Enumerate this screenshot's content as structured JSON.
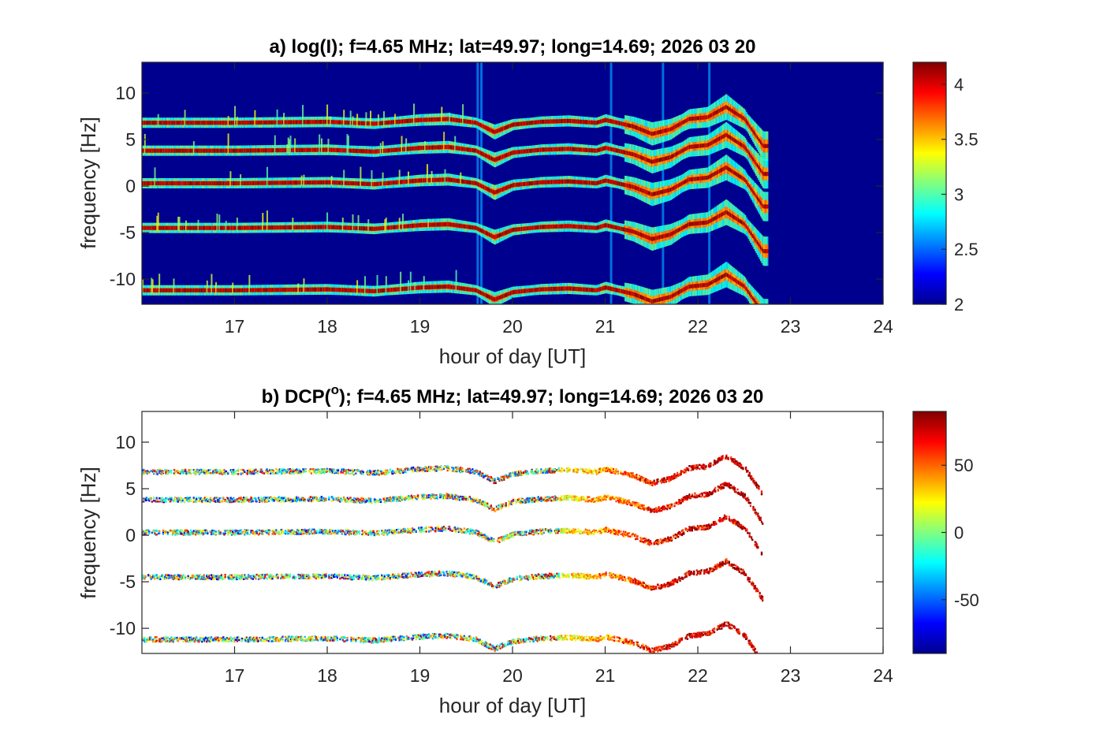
{
  "chart_data": [
    {
      "type": "heatmap",
      "panel": "a",
      "title_prefix": "a) log(I)",
      "title_suffix": "; f=4.65 MHz;  lat=49.97; long=14.69; 2026 03 20",
      "xlabel": "hour of day [UT]",
      "ylabel": "frequency [Hz]",
      "xlim": [
        16,
        24
      ],
      "ylim": [
        -12.7,
        13.3
      ],
      "xticks": [
        17,
        18,
        19,
        20,
        21,
        22,
        23,
        24
      ],
      "yticks": [
        -10,
        -5,
        0,
        5,
        10
      ],
      "colormap": "jet",
      "background_color": "#00008f",
      "colorbar": {
        "range": [
          2,
          4.2
        ],
        "ticks": [
          "2",
          "2.5",
          "3",
          "3.5",
          "4"
        ],
        "tick_values": [
          2,
          2.5,
          3,
          3.5,
          4
        ]
      },
      "signal_end_hour": 22.75,
      "line_base_frequencies_hz": [
        6.8,
        3.8,
        0.3,
        -4.5,
        -11.2
      ],
      "line_offset_profile": {
        "x": [
          16.0,
          17.0,
          18.0,
          18.5,
          19.0,
          19.3,
          19.6,
          19.8,
          20.0,
          20.3,
          20.6,
          20.9,
          21.0,
          21.3,
          21.5,
          21.7,
          21.9,
          22.1,
          22.3,
          22.5,
          22.7
        ],
        "y": [
          0.0,
          0.0,
          0.1,
          -0.1,
          0.3,
          0.4,
          0.0,
          -1.0,
          -0.2,
          0.1,
          0.2,
          0.0,
          0.3,
          -0.4,
          -1.2,
          -0.7,
          0.4,
          0.6,
          1.7,
          0.4,
          -2.5
        ]
      },
      "colorbar_values": [
        2,
        4.2
      ]
    },
    {
      "type": "heatmap",
      "panel": "b",
      "title_prefix": "b) DCP(",
      "title_sup": "o",
      "title_suffix": "); f=4.65 MHz;  lat=49.97; long=14.69; 2026 03 20",
      "xlabel": "hour of day [UT]",
      "ylabel": "frequency [Hz]",
      "xlim": [
        16,
        24
      ],
      "ylim": [
        -12.7,
        13.3
      ],
      "xticks": [
        17,
        18,
        19,
        20,
        21,
        22,
        23,
        24
      ],
      "yticks": [
        -10,
        -5,
        0,
        5,
        10
      ],
      "colormap": "jet",
      "background_color": "#ffffff",
      "colorbar": {
        "range": [
          -90,
          90
        ],
        "ticks": [
          "50",
          "0",
          "-50"
        ],
        "tick_values": [
          50,
          0,
          -50
        ]
      },
      "signal_end_hour": 22.7,
      "dcp_trend": {
        "x": [
          16,
          19,
          20.5,
          21.2,
          21.6,
          22.7
        ],
        "y": [
          0,
          0,
          20,
          50,
          70,
          80
        ]
      }
    }
  ],
  "colors": {
    "axis": "#262626",
    "title": "#000000"
  }
}
